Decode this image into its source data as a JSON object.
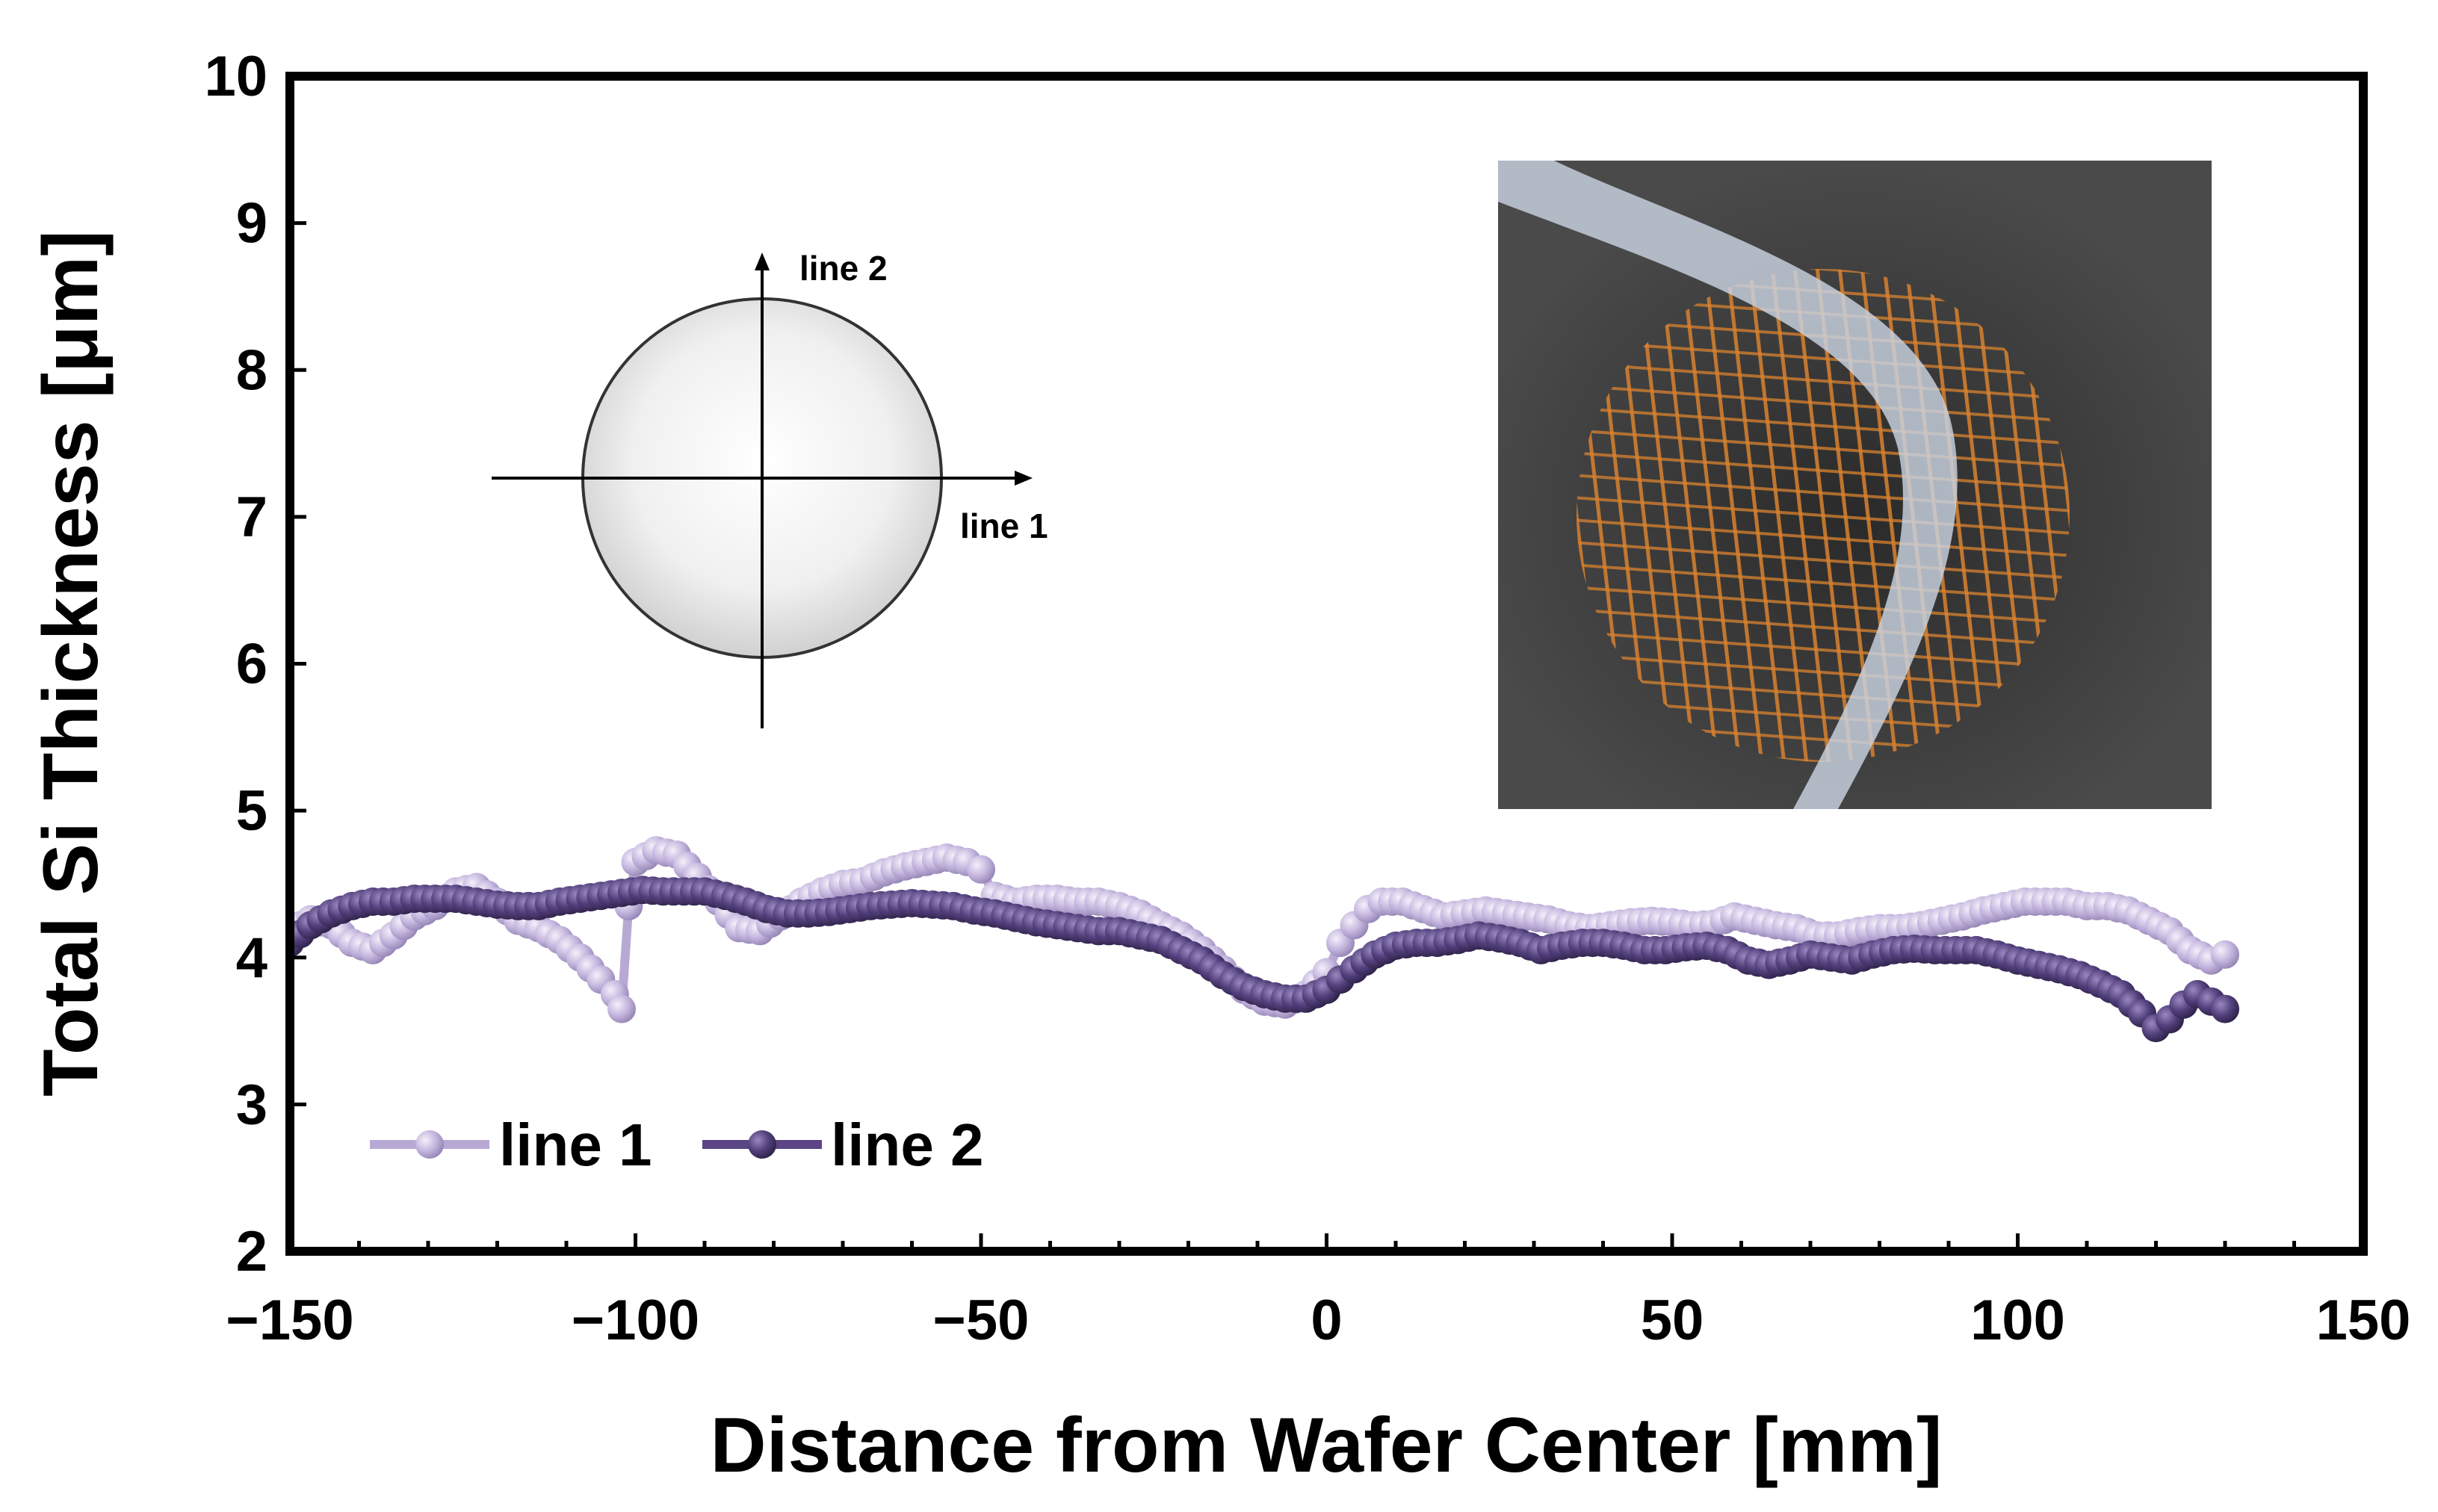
{
  "colors": {
    "line1": "#b8a9d4",
    "line1_bead": "#c4b6de",
    "line2": "#5b4585",
    "line2_bead": "#4f3a7a",
    "frame": "#000000",
    "photo_bg": "#3f3f3f",
    "photo_grid": "#d9822f",
    "photo_tweezer": "#c9d3e2"
  },
  "chart_data": {
    "type": "line",
    "title": "",
    "xlabel": "Distance from Wafer Center [mm]",
    "ylabel": "Total Si Thickness [μm]",
    "xlim": [
      -150,
      150
    ],
    "ylim": [
      2,
      10
    ],
    "xticks": [
      -150,
      -100,
      -50,
      0,
      50,
      100,
      150
    ],
    "xtick_labels": [
      "−150",
      "−100",
      "−50",
      "0",
      "50",
      "100",
      "150"
    ],
    "yticks": [
      2,
      3,
      4,
      5,
      6,
      7,
      8,
      9,
      10
    ],
    "ytick_labels": [
      "2",
      "3",
      "4",
      "5",
      "6",
      "7",
      "8",
      "9",
      "10"
    ],
    "x_minor_step": 10,
    "grid": false,
    "legend": {
      "placement": "bottom-left",
      "entries": [
        "line 1",
        "line 2"
      ]
    },
    "series": [
      {
        "name": "line 1",
        "points": [
          [
            -150,
            4.18
          ],
          [
            -147,
            4.26
          ],
          [
            -144,
            4.22
          ],
          [
            -141,
            4.1
          ],
          [
            -138,
            4.05
          ],
          [
            -135,
            4.15
          ],
          [
            -132,
            4.28
          ],
          [
            -129,
            4.35
          ],
          [
            -126,
            4.45
          ],
          [
            -123,
            4.48
          ],
          [
            -120,
            4.38
          ],
          [
            -117,
            4.25
          ],
          [
            -114,
            4.2
          ],
          [
            -111,
            4.12
          ],
          [
            -108,
            4.0
          ],
          [
            -105,
            3.85
          ],
          [
            -103,
            3.75
          ],
          [
            -102,
            3.65
          ],
          [
            -101,
            4.35
          ],
          [
            -100,
            4.65
          ],
          [
            -97,
            4.73
          ],
          [
            -94,
            4.7
          ],
          [
            -91,
            4.55
          ],
          [
            -88,
            4.38
          ],
          [
            -85,
            4.2
          ],
          [
            -82,
            4.18
          ],
          [
            -79,
            4.28
          ],
          [
            -76,
            4.38
          ],
          [
            -73,
            4.45
          ],
          [
            -70,
            4.5
          ],
          [
            -67,
            4.52
          ],
          [
            -64,
            4.58
          ],
          [
            -61,
            4.62
          ],
          [
            -58,
            4.65
          ],
          [
            -55,
            4.68
          ],
          [
            -52,
            4.65
          ],
          [
            -50,
            4.6
          ],
          [
            -48,
            4.42
          ],
          [
            -45,
            4.38
          ],
          [
            -42,
            4.4
          ],
          [
            -39,
            4.4
          ],
          [
            -36,
            4.38
          ],
          [
            -33,
            4.38
          ],
          [
            -30,
            4.35
          ],
          [
            -27,
            4.3
          ],
          [
            -24,
            4.22
          ],
          [
            -21,
            4.15
          ],
          [
            -18,
            4.05
          ],
          [
            -15,
            3.92
          ],
          [
            -12,
            3.78
          ],
          [
            -9,
            3.7
          ],
          [
            -6,
            3.68
          ],
          [
            -3,
            3.75
          ],
          [
            0,
            3.9
          ],
          [
            2,
            4.1
          ],
          [
            4,
            4.22
          ],
          [
            6,
            4.33
          ],
          [
            8,
            4.38
          ],
          [
            11,
            4.38
          ],
          [
            14,
            4.33
          ],
          [
            17,
            4.28
          ],
          [
            20,
            4.3
          ],
          [
            23,
            4.32
          ],
          [
            26,
            4.3
          ],
          [
            29,
            4.28
          ],
          [
            32,
            4.26
          ],
          [
            35,
            4.22
          ],
          [
            38,
            4.2
          ],
          [
            41,
            4.22
          ],
          [
            44,
            4.24
          ],
          [
            47,
            4.25
          ],
          [
            50,
            4.24
          ],
          [
            53,
            4.22
          ],
          [
            56,
            4.23
          ],
          [
            59,
            4.28
          ],
          [
            62,
            4.25
          ],
          [
            65,
            4.22
          ],
          [
            68,
            4.2
          ],
          [
            71,
            4.15
          ],
          [
            74,
            4.15
          ],
          [
            77,
            4.18
          ],
          [
            80,
            4.2
          ],
          [
            83,
            4.2
          ],
          [
            86,
            4.22
          ],
          [
            89,
            4.25
          ],
          [
            92,
            4.28
          ],
          [
            95,
            4.32
          ],
          [
            98,
            4.35
          ],
          [
            101,
            4.38
          ],
          [
            104,
            4.38
          ],
          [
            107,
            4.38
          ],
          [
            110,
            4.35
          ],
          [
            113,
            4.35
          ],
          [
            116,
            4.32
          ],
          [
            119,
            4.25
          ],
          [
            122,
            4.18
          ],
          [
            125,
            4.05
          ],
          [
            128,
            3.98
          ],
          [
            130,
            4.02
          ]
        ]
      },
      {
        "name": "line 2",
        "points": [
          [
            -150,
            4.1
          ],
          [
            -147,
            4.22
          ],
          [
            -144,
            4.3
          ],
          [
            -141,
            4.35
          ],
          [
            -138,
            4.38
          ],
          [
            -135,
            4.38
          ],
          [
            -132,
            4.4
          ],
          [
            -129,
            4.4
          ],
          [
            -126,
            4.4
          ],
          [
            -123,
            4.38
          ],
          [
            -120,
            4.36
          ],
          [
            -117,
            4.35
          ],
          [
            -114,
            4.35
          ],
          [
            -111,
            4.38
          ],
          [
            -108,
            4.4
          ],
          [
            -105,
            4.42
          ],
          [
            -102,
            4.44
          ],
          [
            -99,
            4.46
          ],
          [
            -96,
            4.45
          ],
          [
            -93,
            4.45
          ],
          [
            -90,
            4.45
          ],
          [
            -87,
            4.42
          ],
          [
            -84,
            4.38
          ],
          [
            -81,
            4.33
          ],
          [
            -78,
            4.3
          ],
          [
            -75,
            4.3
          ],
          [
            -72,
            4.31
          ],
          [
            -69,
            4.33
          ],
          [
            -66,
            4.35
          ],
          [
            -63,
            4.36
          ],
          [
            -60,
            4.37
          ],
          [
            -57,
            4.36
          ],
          [
            -54,
            4.35
          ],
          [
            -51,
            4.32
          ],
          [
            -48,
            4.3
          ],
          [
            -45,
            4.27
          ],
          [
            -42,
            4.24
          ],
          [
            -39,
            4.22
          ],
          [
            -36,
            4.2
          ],
          [
            -33,
            4.18
          ],
          [
            -30,
            4.18
          ],
          [
            -27,
            4.15
          ],
          [
            -24,
            4.12
          ],
          [
            -21,
            4.05
          ],
          [
            -18,
            3.98
          ],
          [
            -15,
            3.88
          ],
          [
            -12,
            3.8
          ],
          [
            -9,
            3.75
          ],
          [
            -6,
            3.72
          ],
          [
            -3,
            3.72
          ],
          [
            0,
            3.78
          ],
          [
            2,
            3.85
          ],
          [
            4,
            3.92
          ],
          [
            7,
            4.02
          ],
          [
            10,
            4.08
          ],
          [
            13,
            4.1
          ],
          [
            16,
            4.1
          ],
          [
            19,
            4.12
          ],
          [
            22,
            4.15
          ],
          [
            25,
            4.13
          ],
          [
            28,
            4.1
          ],
          [
            31,
            4.05
          ],
          [
            34,
            4.08
          ],
          [
            37,
            4.1
          ],
          [
            40,
            4.1
          ],
          [
            43,
            4.08
          ],
          [
            46,
            4.05
          ],
          [
            49,
            4.05
          ],
          [
            52,
            4.07
          ],
          [
            55,
            4.08
          ],
          [
            58,
            4.05
          ],
          [
            61,
            3.98
          ],
          [
            64,
            3.95
          ],
          [
            67,
            3.98
          ],
          [
            70,
            4.02
          ],
          [
            73,
            4.0
          ],
          [
            76,
            3.98
          ],
          [
            79,
            4.02
          ],
          [
            82,
            4.05
          ],
          [
            85,
            4.06
          ],
          [
            88,
            4.05
          ],
          [
            91,
            4.05
          ],
          [
            94,
            4.05
          ],
          [
            97,
            4.02
          ],
          [
            100,
            3.98
          ],
          [
            103,
            3.95
          ],
          [
            106,
            3.92
          ],
          [
            109,
            3.88
          ],
          [
            112,
            3.82
          ],
          [
            115,
            3.75
          ],
          [
            118,
            3.62
          ],
          [
            120,
            3.52
          ],
          [
            122,
            3.58
          ],
          [
            124,
            3.68
          ],
          [
            126,
            3.75
          ],
          [
            128,
            3.7
          ],
          [
            130,
            3.65
          ]
        ]
      }
    ]
  },
  "inset_diagram": {
    "label_line1": "line 1",
    "label_line2": "line 2"
  }
}
